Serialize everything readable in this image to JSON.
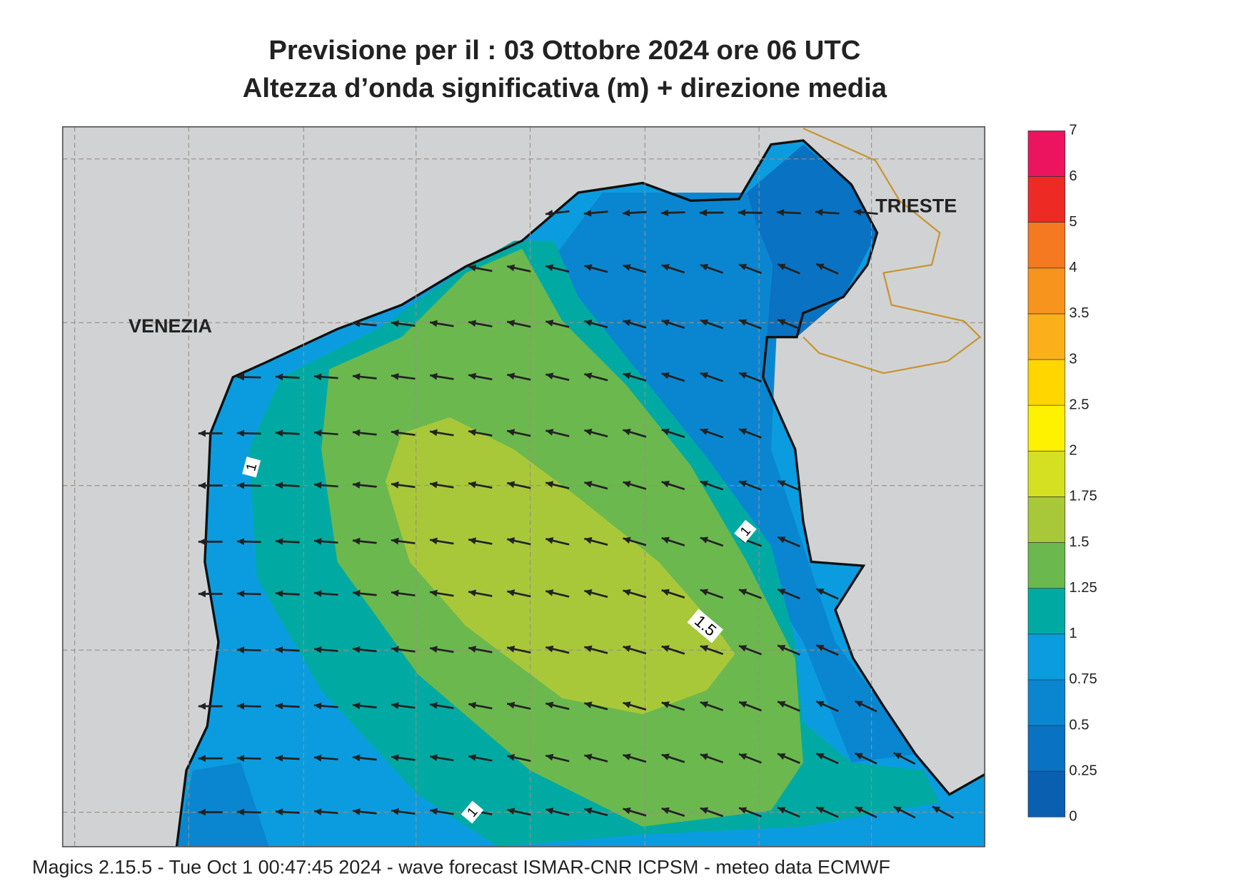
{
  "header": {
    "title": "Previsione per il  :  03  Ottobre  2024   ore 06 UTC",
    "subtitle": "Altezza d’onda significativa (m) + direzione media"
  },
  "map": {
    "places": [
      "VENEZIA",
      "TRIESTE"
    ],
    "contour_labels": [
      "1",
      "1",
      "1.5",
      "1"
    ]
  },
  "legend": {
    "ticks": [
      0,
      0.25,
      0.5,
      0.75,
      1,
      1.25,
      1.5,
      1.75,
      2,
      2.5,
      3,
      3.5,
      4,
      5,
      6,
      7
    ],
    "colors": [
      "#0b5fb0",
      "#0a72c2",
      "#0a86d1",
      "#0b9ce0",
      "#00aaa2",
      "#6bb84f",
      "#a8c83a",
      "#d4e021",
      "#fff200",
      "#ffd600",
      "#fbb01a",
      "#f7941d",
      "#f47920",
      "#ed2a24",
      "#ec145f"
    ]
  },
  "footer": "Magics 2.15.5 - Tue Oct  1 00:47:45 2024 - wave forecast  ISMAR-CNR  ICPSM - meteo data   ECMWF"
}
